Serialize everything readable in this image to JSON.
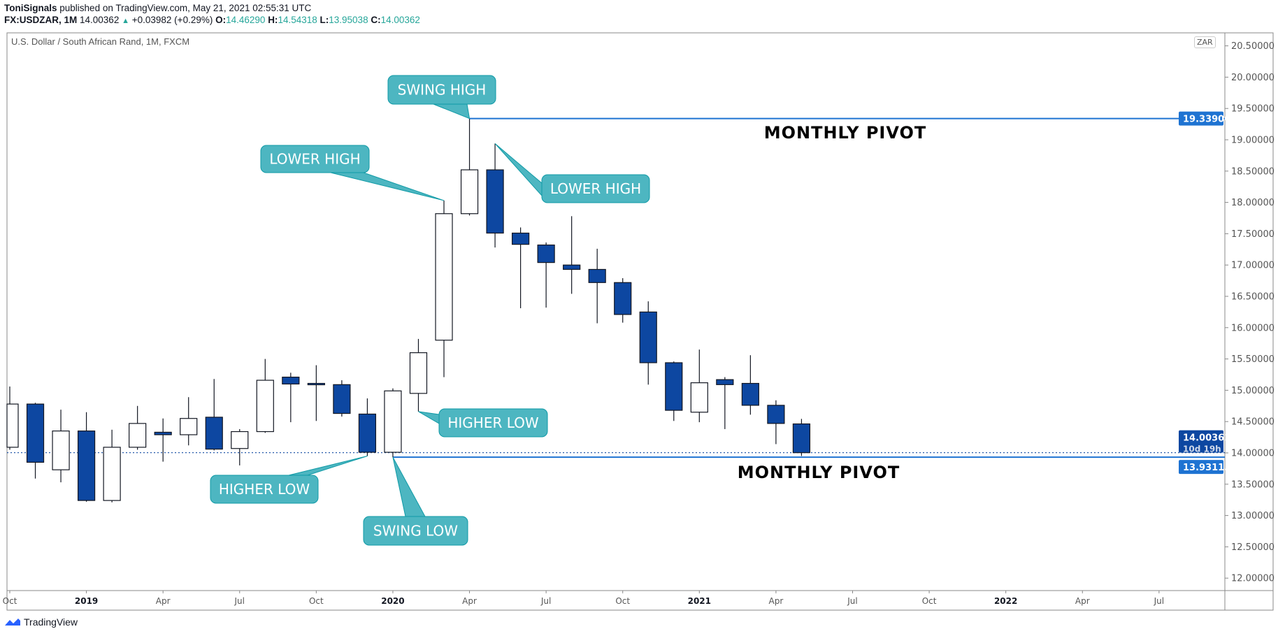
{
  "header": {
    "author": "ToniSignals",
    "published": "published on TradingView.com, May 21, 2021 02:55:31 UTC",
    "symbol": "FX:USDZAR, 1M",
    "last": "14.00362",
    "change": "+0.03982 (+0.29%)",
    "o_label": "O:",
    "o": "14.46290",
    "h_label": "H:",
    "h": "14.54318",
    "l_label": "L:",
    "l": "13.95038",
    "c_label": "C:",
    "c": "14.00362"
  },
  "pane_title": "U.S. Dollar / South African Rand, 1M, FXCM",
  "currency_badge": "ZAR",
  "footer_brand": "TradingView",
  "colors": {
    "up_fill": "#ffffff",
    "down_fill": "#0d47a1",
    "outline": "#131722",
    "callout_fill": "#4db6c1",
    "callout_stroke": "#0f9aa6",
    "pivot_line": "#1e73d2",
    "last_price": "#0d47a1"
  },
  "price_labels": {
    "pivot_high": "19.33900",
    "last": "14.00362",
    "countdown": "10d 19h",
    "pivot_low": "13.93113"
  },
  "chart_data": {
    "type": "candlestick",
    "title": "U.S. Dollar / South African Rand, 1M, FXCM",
    "ylim": [
      11.8,
      20.7
    ],
    "yticks": [
      "12.00000",
      "12.50000",
      "13.00000",
      "13.50000",
      "14.00000",
      "14.50000",
      "15.00000",
      "15.50000",
      "16.00000",
      "16.50000",
      "17.00000",
      "17.50000",
      "18.00000",
      "18.50000",
      "19.00000",
      "19.50000",
      "20.00000",
      "20.50000"
    ],
    "xticks": [
      {
        "i": 0,
        "label": "Oct",
        "year": false
      },
      {
        "i": 3,
        "label": "2019",
        "year": true
      },
      {
        "i": 6,
        "label": "Apr",
        "year": false
      },
      {
        "i": 9,
        "label": "Jul",
        "year": false
      },
      {
        "i": 12,
        "label": "Oct",
        "year": false
      },
      {
        "i": 15,
        "label": "2020",
        "year": true
      },
      {
        "i": 18,
        "label": "Apr",
        "year": false
      },
      {
        "i": 21,
        "label": "Jul",
        "year": false
      },
      {
        "i": 24,
        "label": "Oct",
        "year": false
      },
      {
        "i": 27,
        "label": "2021",
        "year": true
      },
      {
        "i": 30,
        "label": "Apr",
        "year": false
      },
      {
        "i": 33,
        "label": "Jul",
        "year": false
      },
      {
        "i": 36,
        "label": "Oct",
        "year": false
      },
      {
        "i": 39,
        "label": "2022",
        "year": true
      },
      {
        "i": 42,
        "label": "Apr",
        "year": false
      },
      {
        "i": 45,
        "label": "Jul",
        "year": false
      }
    ],
    "candles": [
      {
        "d": "2018-10",
        "o": 14.09,
        "h": 15.06,
        "l": 14.05,
        "c": 14.78
      },
      {
        "d": "2018-11",
        "o": 14.78,
        "h": 14.8,
        "l": 13.59,
        "c": 13.85
      },
      {
        "d": "2018-12",
        "o": 13.73,
        "h": 14.69,
        "l": 13.53,
        "c": 14.35
      },
      {
        "d": "2019-01",
        "o": 14.35,
        "h": 14.65,
        "l": 13.22,
        "c": 13.24
      },
      {
        "d": "2019-02",
        "o": 13.24,
        "h": 14.37,
        "l": 13.21,
        "c": 14.09
      },
      {
        "d": "2019-03",
        "o": 14.09,
        "h": 14.75,
        "l": 14.05,
        "c": 14.47
      },
      {
        "d": "2019-04",
        "o": 14.33,
        "h": 14.55,
        "l": 13.86,
        "c": 14.29
      },
      {
        "d": "2019-05",
        "o": 14.29,
        "h": 14.89,
        "l": 14.12,
        "c": 14.55
      },
      {
        "d": "2019-06",
        "o": 14.57,
        "h": 15.18,
        "l": 14.04,
        "c": 14.06
      },
      {
        "d": "2019-07",
        "o": 14.07,
        "h": 14.38,
        "l": 13.8,
        "c": 14.34
      },
      {
        "d": "2019-08",
        "o": 14.34,
        "h": 15.5,
        "l": 14.32,
        "c": 15.16
      },
      {
        "d": "2019-09",
        "o": 15.21,
        "h": 15.28,
        "l": 14.49,
        "c": 15.1
      },
      {
        "d": "2019-10",
        "o": 15.11,
        "h": 15.4,
        "l": 14.51,
        "c": 15.1
      },
      {
        "d": "2019-11",
        "o": 15.09,
        "h": 15.16,
        "l": 14.58,
        "c": 14.63
      },
      {
        "d": "2019-12",
        "o": 14.62,
        "h": 14.87,
        "l": 13.95,
        "c": 14.01
      },
      {
        "d": "2020-01",
        "o": 14.01,
        "h": 15.03,
        "l": 13.93113,
        "c": 14.99
      },
      {
        "d": "2020-02",
        "o": 14.95,
        "h": 15.82,
        "l": 14.66,
        "c": 15.6
      },
      {
        "d": "2020-03",
        "o": 15.8,
        "h": 18.03,
        "l": 15.21,
        "c": 17.82
      },
      {
        "d": "2020-04",
        "o": 17.82,
        "h": 19.339,
        "l": 17.79,
        "c": 18.52
      },
      {
        "d": "2020-05",
        "o": 18.52,
        "h": 18.94,
        "l": 17.28,
        "c": 17.51
      },
      {
        "d": "2020-06",
        "o": 17.51,
        "h": 17.6,
        "l": 16.31,
        "c": 17.33
      },
      {
        "d": "2020-07",
        "o": 17.32,
        "h": 17.36,
        "l": 16.32,
        "c": 17.04
      },
      {
        "d": "2020-08",
        "o": 17.0,
        "h": 17.78,
        "l": 16.54,
        "c": 16.93
      },
      {
        "d": "2020-09",
        "o": 16.93,
        "h": 17.26,
        "l": 16.07,
        "c": 16.72
      },
      {
        "d": "2020-10",
        "o": 16.72,
        "h": 16.79,
        "l": 16.08,
        "c": 16.21
      },
      {
        "d": "2020-11",
        "o": 16.25,
        "h": 16.42,
        "l": 15.09,
        "c": 15.44
      },
      {
        "d": "2020-12",
        "o": 15.44,
        "h": 15.46,
        "l": 14.51,
        "c": 14.68
      },
      {
        "d": "2021-01",
        "o": 14.65,
        "h": 15.65,
        "l": 14.49,
        "c": 15.12
      },
      {
        "d": "2021-02",
        "o": 15.17,
        "h": 15.21,
        "l": 14.38,
        "c": 15.09
      },
      {
        "d": "2021-03",
        "o": 15.11,
        "h": 15.56,
        "l": 14.61,
        "c": 14.76
      },
      {
        "d": "2021-04",
        "o": 14.76,
        "h": 14.84,
        "l": 14.14,
        "c": 14.47
      },
      {
        "d": "2021-05",
        "o": 14.4629,
        "h": 14.54318,
        "l": 13.95038,
        "c": 14.00362
      }
    ],
    "current_price": 14.00362,
    "pivots": [
      {
        "name": "pivot-high",
        "price": 19.339,
        "from_index": 18,
        "label": "MONTHLY PIVOT"
      },
      {
        "name": "pivot-low",
        "price": 13.93113,
        "from_index": 15,
        "label": "MONTHLY PIVOT"
      }
    ],
    "annotations": [
      {
        "text": "SWING HIGH",
        "index": 18,
        "price": 19.339
      },
      {
        "text": "LOWER HIGH",
        "index": 17,
        "price": 18.03
      },
      {
        "text": "LOWER HIGH",
        "index": 19,
        "price": 18.94
      },
      {
        "text": "HIGHER LOW",
        "index": 16,
        "price": 14.66
      },
      {
        "text": "HIGHER LOW",
        "index": 14,
        "price": 13.95
      },
      {
        "text": "SWING LOW",
        "index": 15,
        "price": 13.93113
      }
    ]
  }
}
